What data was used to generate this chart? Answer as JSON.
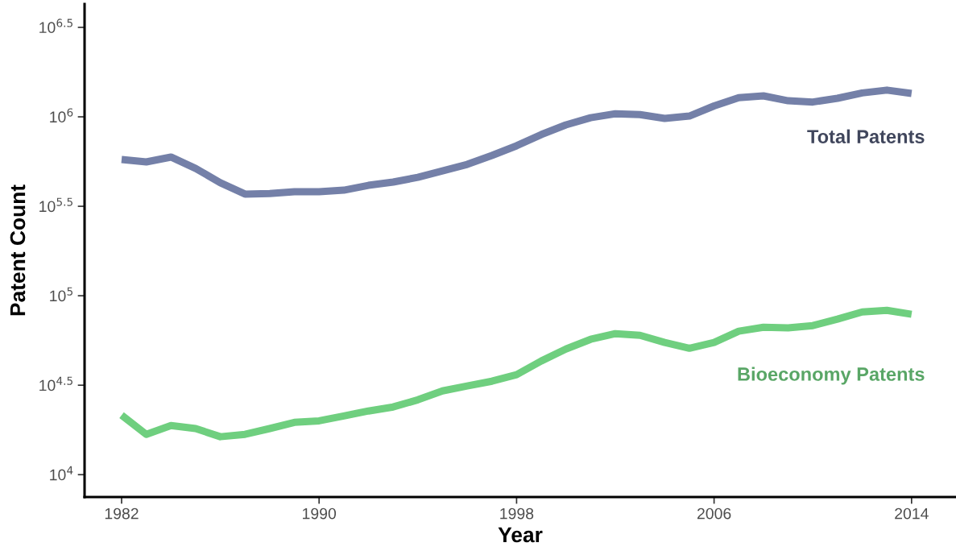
{
  "chart_data": {
    "type": "line",
    "xlabel": "Year",
    "ylabel": "Patent Count",
    "log": "y",
    "grid": false,
    "legend": false,
    "line_style": "solid",
    "marker": "none",
    "x": [
      1982,
      1983,
      1984,
      1985,
      1986,
      1987,
      1988,
      1989,
      1990,
      1991,
      1992,
      1993,
      1994,
      1995,
      1996,
      1997,
      1998,
      1999,
      2000,
      2001,
      2002,
      2003,
      2004,
      2005,
      2006,
      2007,
      2008,
      2009,
      2010,
      2011,
      2012,
      2013,
      2014
    ],
    "xlim": [
      1980.5,
      2015.8
    ],
    "xticks": [
      1982,
      1990,
      1998,
      2006,
      2014
    ],
    "ylim": [
      7500,
      4270000
    ],
    "yticks": [
      {
        "value": 10000,
        "label": "10$^{4}$"
      },
      {
        "value": 31623,
        "label": "10$^{4.5}$"
      },
      {
        "value": 100000,
        "label": "10$^{5}$"
      },
      {
        "value": 316228,
        "label": "10$^{5.5}$"
      },
      {
        "value": 1000000,
        "label": "10$^{6}$"
      },
      {
        "value": 3162278,
        "label": "10$^{6.5}$"
      }
    ],
    "series": [
      {
        "name": "Total Patents",
        "color": "#7480a8",
        "values": [
          577000,
          560000,
          596000,
          515000,
          428000,
          370000,
          373000,
          381000,
          381000,
          389000,
          414000,
          432000,
          459000,
          499000,
          542000,
          608000,
          689000,
          796000,
          902000,
          989000,
          1040000,
          1030000,
          980000,
          1010000,
          1150000,
          1280000,
          1310000,
          1230000,
          1210000,
          1270000,
          1360000,
          1410000,
          1350000
        ]
      },
      {
        "name": "Bioeconomy Patents",
        "color": "#6fcf7f",
        "values": [
          21500,
          16800,
          18800,
          18100,
          16300,
          16800,
          18100,
          19600,
          20000,
          21300,
          22700,
          23900,
          26200,
          29400,
          31300,
          33300,
          36200,
          43200,
          50400,
          57100,
          61400,
          60100,
          54800,
          50900,
          54800,
          63400,
          66700,
          66100,
          68100,
          74000,
          81200,
          82900,
          78800
        ]
      }
    ]
  }
}
